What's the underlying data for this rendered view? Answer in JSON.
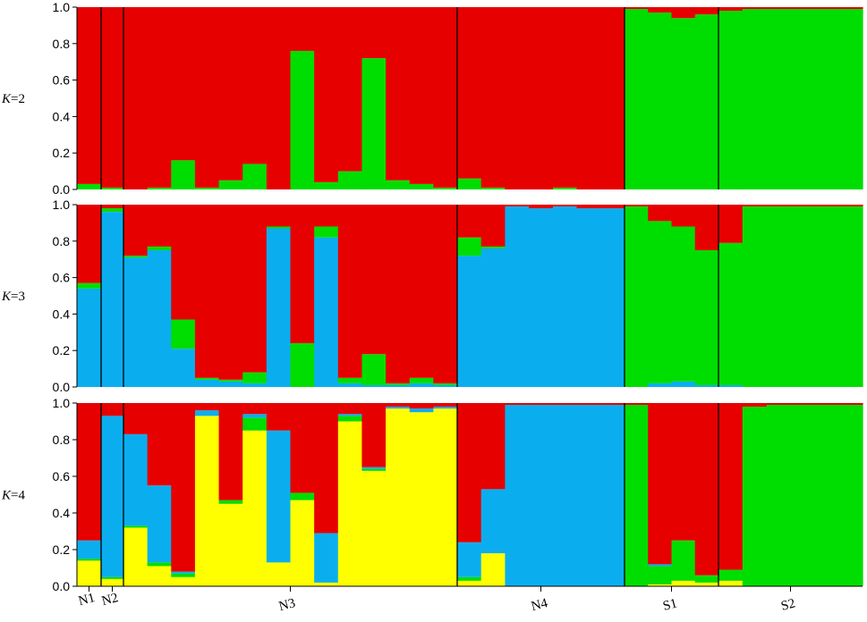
{
  "chart_data": {
    "type": "stacked-bar",
    "colors": {
      "red": "#e60000",
      "green": "#00dd00",
      "blue": "#0aaeef",
      "yellow": "#ffff00"
    },
    "populations": [
      {
        "name": "N1",
        "count": 1
      },
      {
        "name": "N2",
        "count": 1
      },
      {
        "name": "N3",
        "count": 14
      },
      {
        "name": "N4",
        "count": 7
      },
      {
        "name": "S1",
        "count": 4
      },
      {
        "name": "S2",
        "count": 6
      }
    ],
    "y_ticks": [
      "0.0",
      "0.2",
      "0.4",
      "0.6",
      "0.8",
      "1.0"
    ],
    "ylim": [
      0,
      1
    ],
    "panels": [
      {
        "label_italic": "K",
        "label_rest": "=2",
        "order": [
          "green",
          "red"
        ],
        "bars": [
          {
            "green": 0.03
          },
          {
            "green": 0.01
          },
          {
            "green": 0.0
          },
          {
            "green": 0.01
          },
          {
            "green": 0.16
          },
          {
            "green": 0.01
          },
          {
            "green": 0.05
          },
          {
            "green": 0.14
          },
          {
            "green": 0.0
          },
          {
            "green": 0.76
          },
          {
            "green": 0.04
          },
          {
            "green": 0.1
          },
          {
            "green": 0.72
          },
          {
            "green": 0.05
          },
          {
            "green": 0.03
          },
          {
            "green": 0.01
          },
          {
            "green": 0.06
          },
          {
            "green": 0.01
          },
          {
            "green": 0.0
          },
          {
            "green": 0.0
          },
          {
            "green": 0.01
          },
          {
            "green": 0.0
          },
          {
            "green": 0.0
          },
          {
            "green": 0.99
          },
          {
            "green": 0.97
          },
          {
            "green": 0.94
          },
          {
            "green": 0.96
          },
          {
            "green": 0.98
          },
          {
            "green": 0.99
          },
          {
            "green": 0.99
          },
          {
            "green": 0.99
          },
          {
            "green": 0.99
          },
          {
            "green": 0.99
          }
        ]
      },
      {
        "label_italic": "K",
        "label_rest": "=3",
        "order": [
          "blue",
          "green",
          "red"
        ],
        "bars": [
          {
            "blue": 0.54,
            "green": 0.03
          },
          {
            "blue": 0.96,
            "green": 0.02
          },
          {
            "blue": 0.71,
            "green": 0.01
          },
          {
            "blue": 0.75,
            "green": 0.02
          },
          {
            "blue": 0.21,
            "green": 0.16
          },
          {
            "blue": 0.04,
            "green": 0.01
          },
          {
            "blue": 0.03,
            "green": 0.01
          },
          {
            "blue": 0.02,
            "green": 0.06
          },
          {
            "blue": 0.87,
            "green": 0.01
          },
          {
            "blue": 0.0,
            "green": 0.24
          },
          {
            "blue": 0.82,
            "green": 0.06
          },
          {
            "blue": 0.02,
            "green": 0.03
          },
          {
            "blue": 0.01,
            "green": 0.17
          },
          {
            "blue": 0.01,
            "green": 0.01
          },
          {
            "blue": 0.02,
            "green": 0.03
          },
          {
            "blue": 0.01,
            "green": 0.01
          },
          {
            "blue": 0.72,
            "green": 0.1
          },
          {
            "blue": 0.76,
            "green": 0.01
          },
          {
            "blue": 0.99,
            "green": 0.0
          },
          {
            "blue": 0.98,
            "green": 0.0
          },
          {
            "blue": 0.99,
            "green": 0.0
          },
          {
            "blue": 0.98,
            "green": 0.0
          },
          {
            "blue": 0.98,
            "green": 0.0
          },
          {
            "blue": 0.0,
            "green": 0.99
          },
          {
            "blue": 0.02,
            "green": 0.89
          },
          {
            "blue": 0.03,
            "green": 0.85
          },
          {
            "blue": 0.01,
            "green": 0.74
          },
          {
            "blue": 0.01,
            "green": 0.78
          },
          {
            "blue": 0.0,
            "green": 0.99
          },
          {
            "blue": 0.0,
            "green": 0.99
          },
          {
            "blue": 0.0,
            "green": 0.99
          },
          {
            "blue": 0.0,
            "green": 0.99
          },
          {
            "blue": 0.0,
            "green": 0.99
          }
        ]
      },
      {
        "label_italic": "K",
        "label_rest": "=4",
        "order": [
          "yellow",
          "green",
          "blue",
          "red"
        ],
        "bars": [
          {
            "yellow": 0.14,
            "green": 0.01,
            "blue": 0.1
          },
          {
            "yellow": 0.04,
            "green": 0.01,
            "blue": 0.88
          },
          {
            "yellow": 0.32,
            "green": 0.01,
            "blue": 0.5
          },
          {
            "yellow": 0.11,
            "green": 0.02,
            "blue": 0.42
          },
          {
            "yellow": 0.05,
            "green": 0.02,
            "blue": 0.01
          },
          {
            "yellow": 0.93,
            "green": 0.0,
            "blue": 0.03
          },
          {
            "yellow": 0.45,
            "green": 0.02,
            "blue": 0.0
          },
          {
            "yellow": 0.85,
            "green": 0.07,
            "blue": 0.02
          },
          {
            "yellow": 0.13,
            "green": 0.0,
            "blue": 0.72
          },
          {
            "yellow": 0.47,
            "green": 0.04,
            "blue": 0.0
          },
          {
            "yellow": 0.02,
            "green": 0.0,
            "blue": 0.27
          },
          {
            "yellow": 0.9,
            "green": 0.03,
            "blue": 0.01
          },
          {
            "yellow": 0.63,
            "green": 0.01,
            "blue": 0.01
          },
          {
            "yellow": 0.97,
            "green": 0.0,
            "blue": 0.01
          },
          {
            "yellow": 0.95,
            "green": 0.0,
            "blue": 0.02
          },
          {
            "yellow": 0.97,
            "green": 0.0,
            "blue": 0.01
          },
          {
            "yellow": 0.03,
            "green": 0.02,
            "blue": 0.19
          },
          {
            "yellow": 0.18,
            "green": 0.0,
            "blue": 0.35
          },
          {
            "yellow": 0.0,
            "green": 0.0,
            "blue": 0.99
          },
          {
            "yellow": 0.0,
            "green": 0.0,
            "blue": 0.99
          },
          {
            "yellow": 0.0,
            "green": 0.0,
            "blue": 0.99
          },
          {
            "yellow": 0.0,
            "green": 0.0,
            "blue": 0.99
          },
          {
            "yellow": 0.0,
            "green": 0.0,
            "blue": 0.99
          },
          {
            "yellow": 0.0,
            "green": 0.99,
            "blue": 0.0
          },
          {
            "yellow": 0.01,
            "green": 0.1,
            "blue": 0.01
          },
          {
            "yellow": 0.03,
            "green": 0.22,
            "blue": 0.0
          },
          {
            "yellow": 0.02,
            "green": 0.04,
            "blue": 0.0
          },
          {
            "yellow": 0.03,
            "green": 0.06,
            "blue": 0.0
          },
          {
            "yellow": 0.0,
            "green": 0.98,
            "blue": 0.0
          },
          {
            "yellow": 0.0,
            "green": 0.99,
            "blue": 0.0
          },
          {
            "yellow": 0.0,
            "green": 0.99,
            "blue": 0.0
          },
          {
            "yellow": 0.0,
            "green": 0.99,
            "blue": 0.0
          },
          {
            "yellow": 0.0,
            "green": 0.99,
            "blue": 0.0
          }
        ]
      }
    ]
  }
}
